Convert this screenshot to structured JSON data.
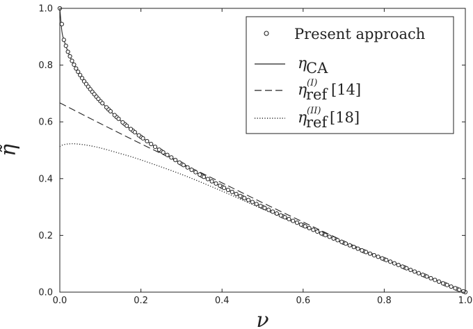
{
  "chart_data": {
    "type": "line",
    "xlabel": "ν",
    "ylabel": "η̃",
    "xlim": [
      0.0,
      1.0
    ],
    "ylim": [
      0.0,
      1.0
    ],
    "xticks": [
      "0.0",
      "0.2",
      "0.4",
      "0.6",
      "0.8",
      "1.0"
    ],
    "yticks": [
      "0.0",
      "0.2",
      "0.4",
      "0.6",
      "0.8",
      "1.0"
    ],
    "grid": false,
    "legend_position": "top-right",
    "series": [
      {
        "name": "Present approach",
        "style": "circles",
        "x": [
          0.0,
          0.01,
          0.02,
          0.03,
          0.04,
          0.05,
          0.06,
          0.07,
          0.08,
          0.09,
          0.1,
          0.12,
          0.14,
          0.16,
          0.18,
          0.2,
          0.25,
          0.3,
          0.35,
          0.4,
          0.45,
          0.5,
          0.55,
          0.6,
          0.65,
          0.7,
          0.75,
          0.8,
          0.85,
          0.9,
          0.95,
          0.98,
          1.0
        ],
        "y": [
          1.0,
          0.889,
          0.847,
          0.815,
          0.788,
          0.765,
          0.743,
          0.724,
          0.706,
          0.689,
          0.673,
          0.644,
          0.617,
          0.592,
          0.569,
          0.547,
          0.497,
          0.452,
          0.41,
          0.371,
          0.335,
          0.3,
          0.267,
          0.235,
          0.204,
          0.174,
          0.144,
          0.116,
          0.087,
          0.058,
          0.028,
          0.011,
          0.0
        ]
      },
      {
        "name": "η_CA",
        "label_main": "η",
        "label_sub": "CA",
        "label_sup": "",
        "label_ref": "",
        "style": "solid",
        "x": [
          0.0,
          0.005,
          0.01,
          0.02,
          0.03,
          0.05,
          0.07,
          0.1,
          0.15,
          0.2,
          0.3,
          0.4,
          0.5,
          0.6,
          0.7,
          0.8,
          0.9,
          1.0
        ],
        "y": [
          1.0,
          0.92,
          0.889,
          0.847,
          0.815,
          0.765,
          0.724,
          0.673,
          0.604,
          0.547,
          0.452,
          0.371,
          0.3,
          0.235,
          0.174,
          0.116,
          0.058,
          0.0
        ]
      },
      {
        "name": "η_ref^(I) [14]",
        "label_main": "η",
        "label_sub": "ref",
        "label_sup": "(I)",
        "label_ref": "[14]",
        "style": "dashed",
        "x": [
          0.0,
          0.1,
          0.2,
          0.3,
          0.4,
          0.5,
          0.6,
          0.7,
          0.8,
          0.9,
          1.0
        ],
        "y": [
          0.667,
          0.594,
          0.523,
          0.454,
          0.385,
          0.315,
          0.247,
          0.18,
          0.117,
          0.058,
          0.0
        ]
      },
      {
        "name": "η_ref^(II) [18]",
        "label_main": "η",
        "label_sub": "ref",
        "label_sup": "(II)",
        "label_ref": "[18]",
        "style": "dotted",
        "x": [
          0.0,
          0.01,
          0.03,
          0.05,
          0.07,
          0.1,
          0.15,
          0.2,
          0.3,
          0.4,
          0.5,
          0.6,
          0.7,
          0.8,
          0.9,
          1.0
        ],
        "y": [
          0.513,
          0.52,
          0.523,
          0.521,
          0.517,
          0.508,
          0.488,
          0.466,
          0.415,
          0.356,
          0.293,
          0.232,
          0.173,
          0.116,
          0.058,
          0.0
        ]
      }
    ]
  }
}
